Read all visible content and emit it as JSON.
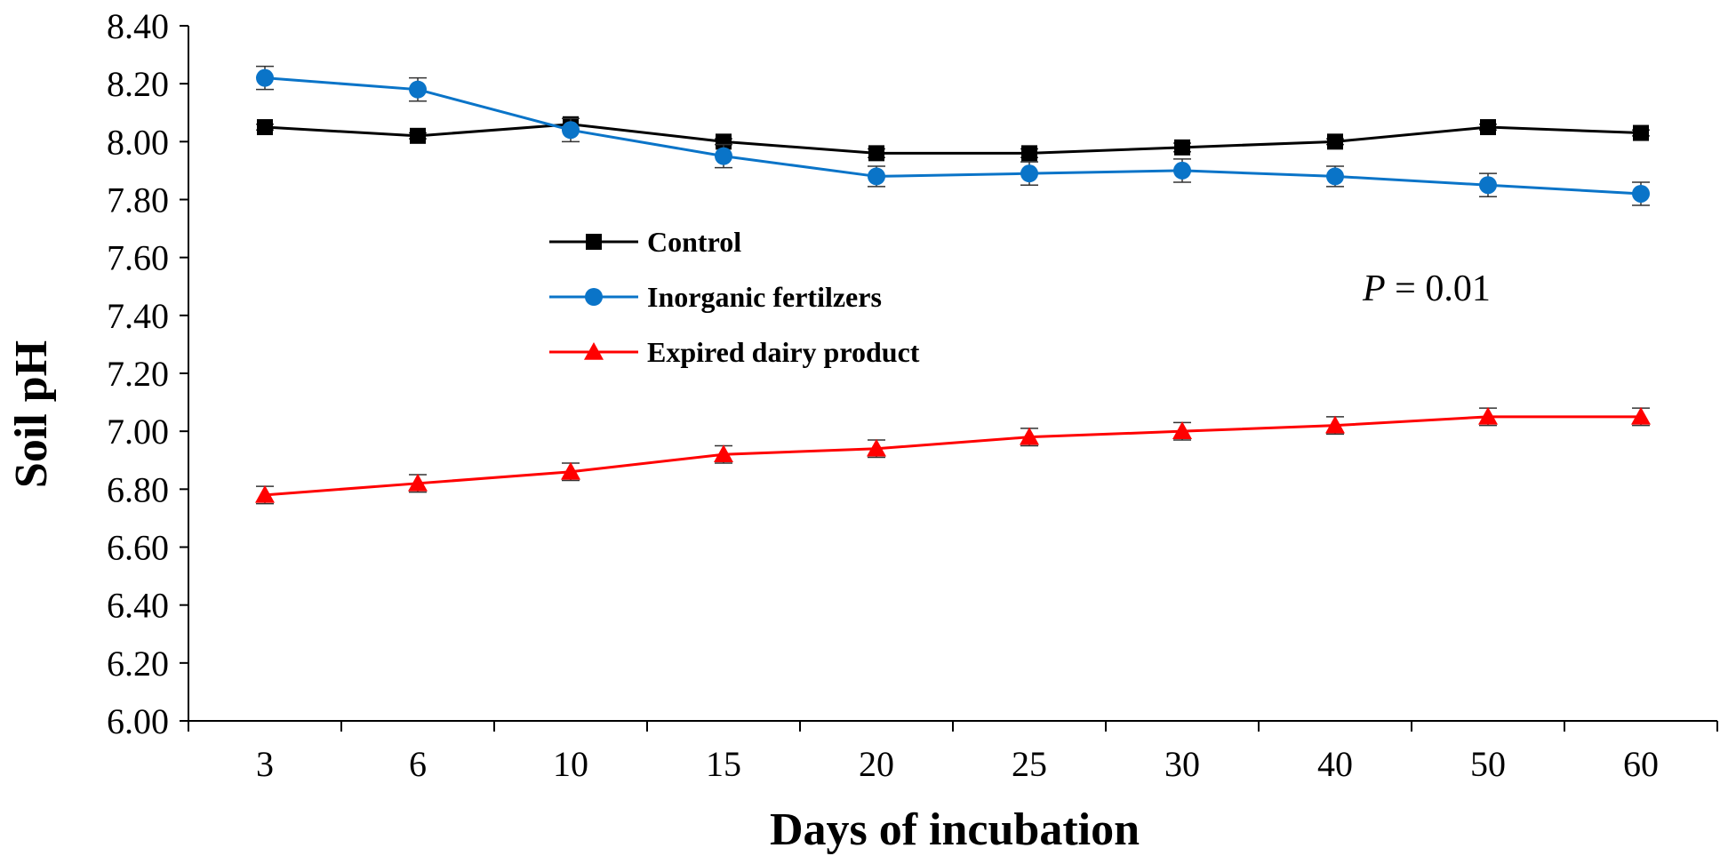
{
  "chart_data": {
    "type": "line",
    "title": "",
    "xlabel": "Days of incubation",
    "ylabel": "Soil pH",
    "categories": [
      "3",
      "6",
      "10",
      "15",
      "20",
      "25",
      "30",
      "40",
      "50",
      "60"
    ],
    "ylim": [
      6.0,
      8.4
    ],
    "yticks": [
      "6.00",
      "6.20",
      "6.40",
      "6.60",
      "6.80",
      "7.00",
      "7.20",
      "7.40",
      "7.60",
      "7.80",
      "8.00",
      "8.20",
      "8.40"
    ],
    "grid": false,
    "legend_position": "center-left",
    "annotation": {
      "italic": "P",
      "rest": " = 0.01"
    },
    "series": [
      {
        "name": "Control",
        "color": "#000000",
        "marker": "square",
        "values": [
          8.05,
          8.02,
          8.06,
          8.0,
          7.96,
          7.96,
          7.98,
          8.0,
          8.05,
          8.03
        ],
        "errors": [
          0.01,
          0.01,
          0.02,
          0.01,
          0.015,
          0.015,
          0.015,
          0.01,
          0.01,
          0.01
        ]
      },
      {
        "name": "Inorganic fertilzers",
        "color": "#0a74c8",
        "marker": "circle",
        "values": [
          8.22,
          8.18,
          8.04,
          7.95,
          7.88,
          7.89,
          7.9,
          7.88,
          7.85,
          7.82
        ],
        "errors": [
          0.04,
          0.04,
          0.04,
          0.04,
          0.035,
          0.04,
          0.04,
          0.035,
          0.04,
          0.04
        ]
      },
      {
        "name": "Expired dairy product",
        "color": "#ff0000",
        "marker": "triangle",
        "values": [
          6.78,
          6.82,
          6.86,
          6.92,
          6.94,
          6.98,
          7.0,
          7.02,
          7.05,
          7.05
        ],
        "errors": [
          0.03,
          0.03,
          0.03,
          0.03,
          0.03,
          0.03,
          0.03,
          0.03,
          0.03,
          0.03
        ]
      }
    ]
  }
}
